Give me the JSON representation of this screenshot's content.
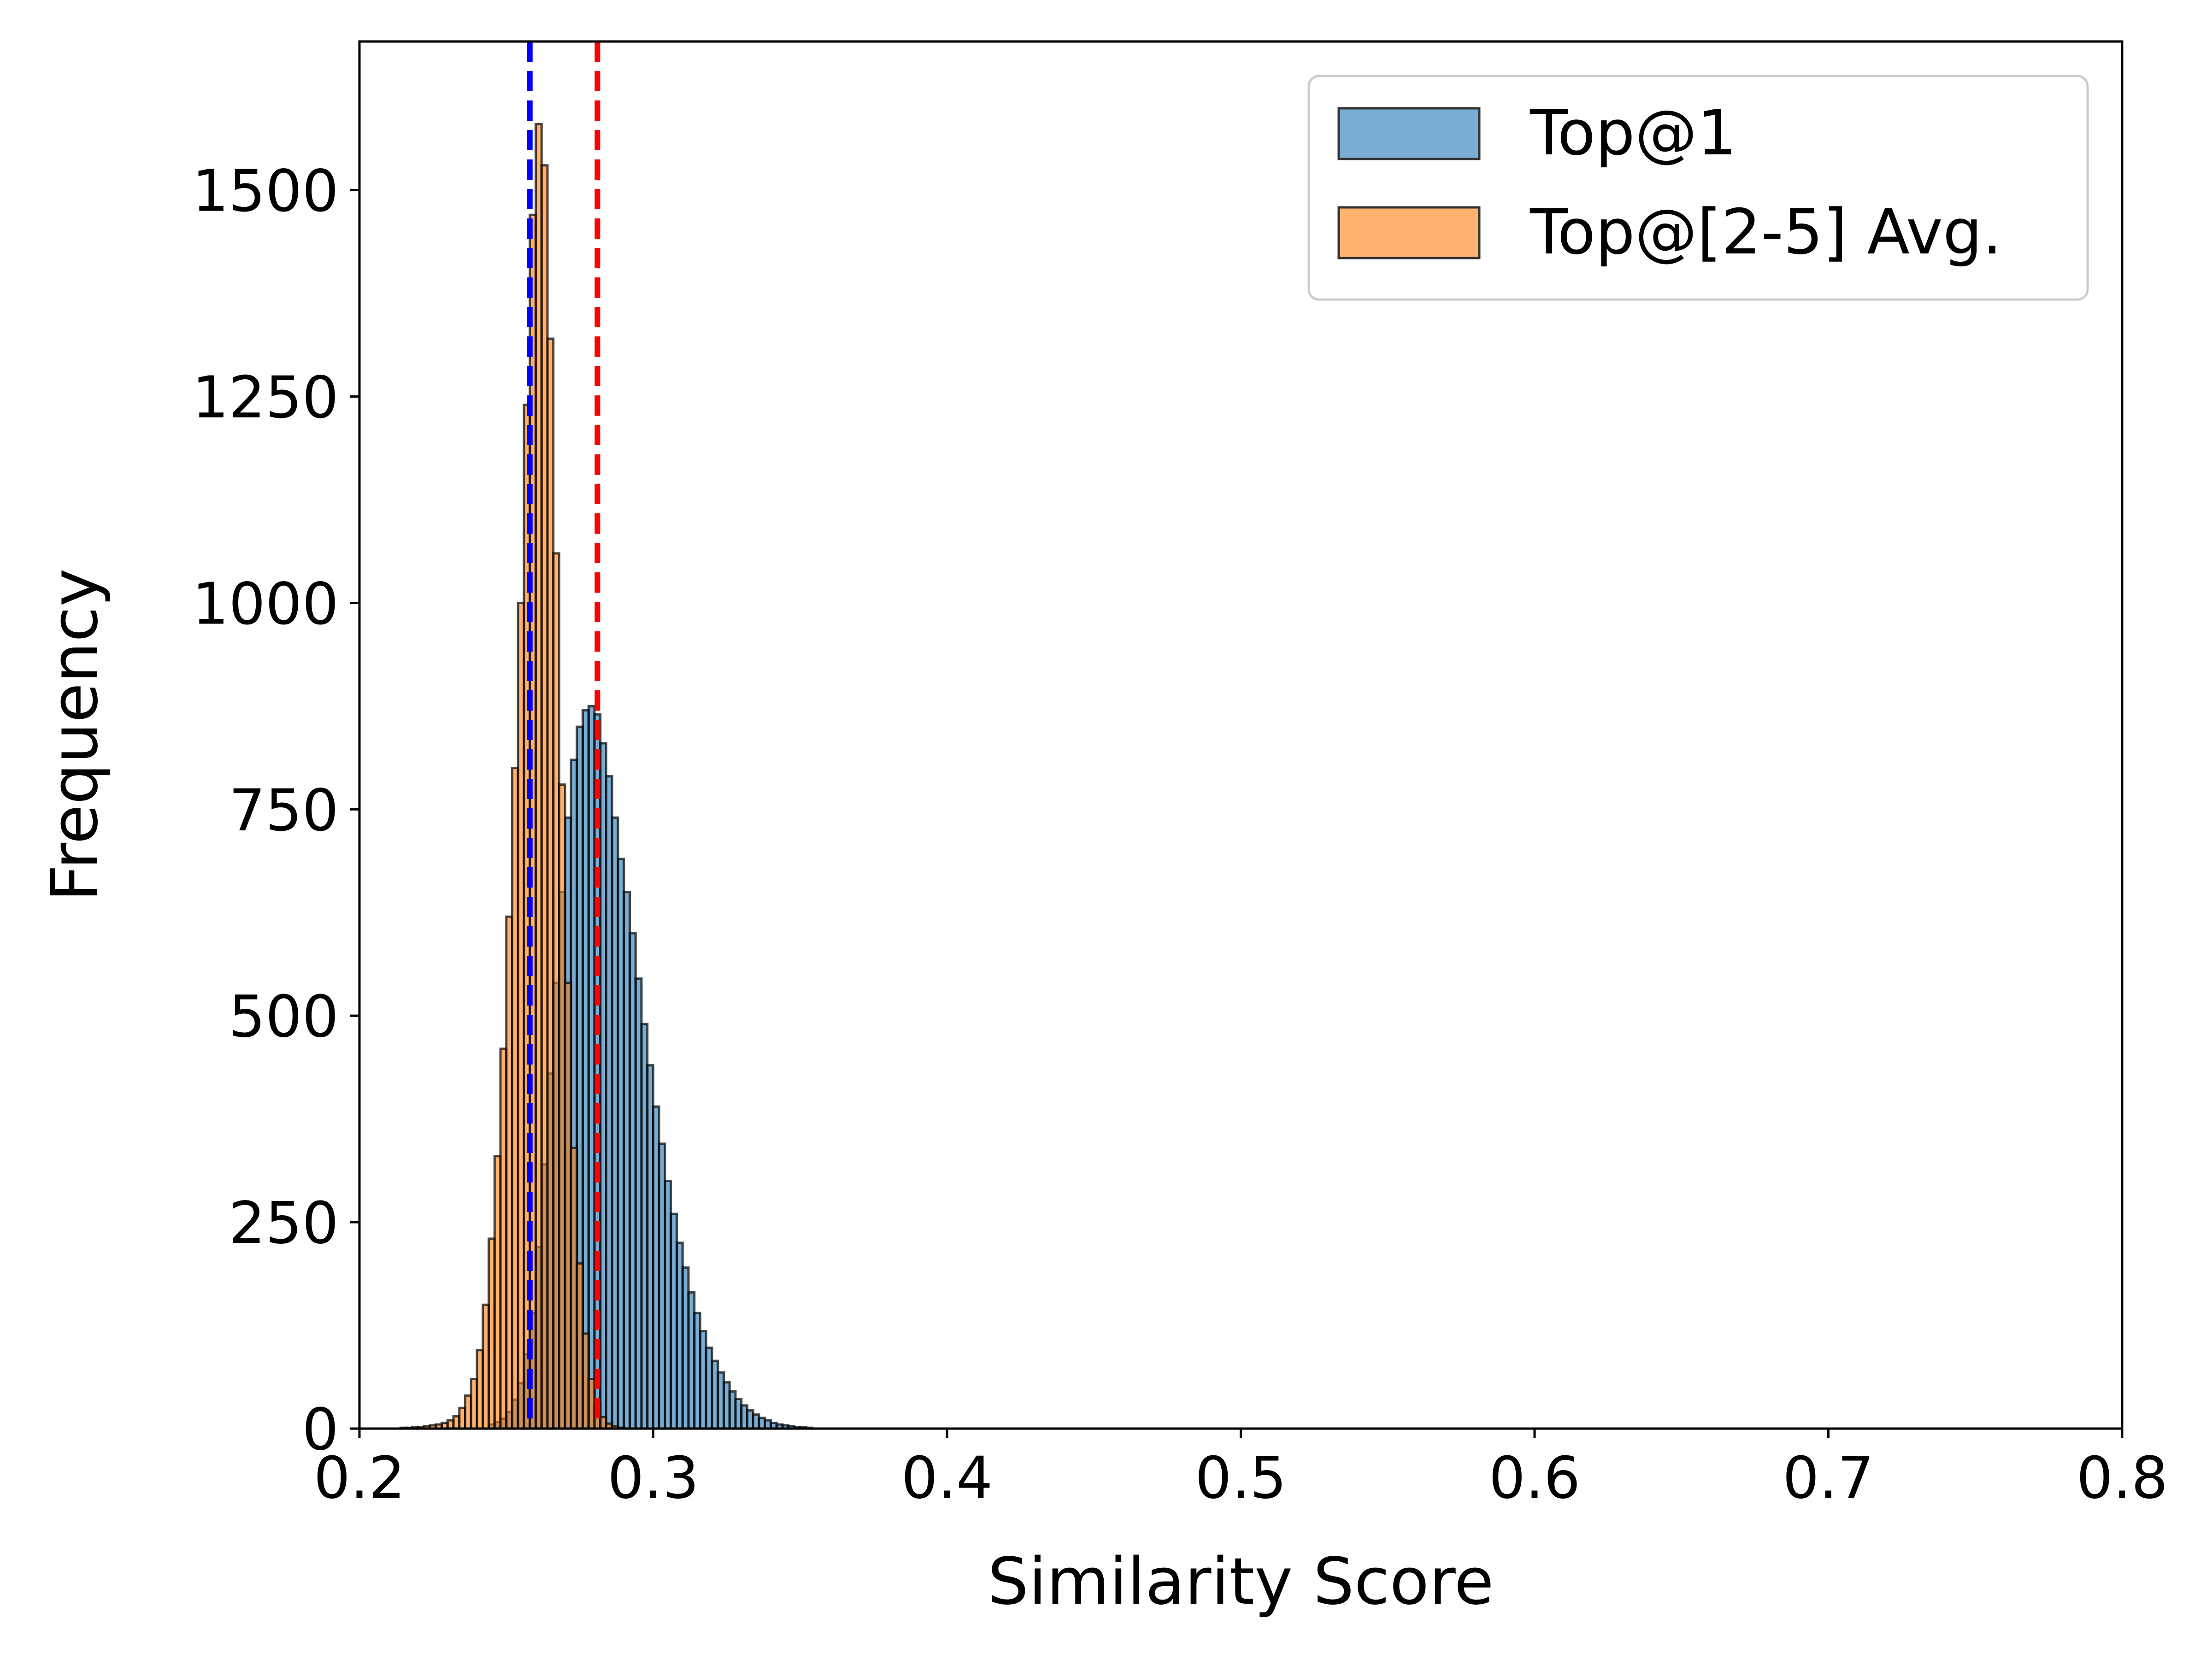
{
  "chart_data": {
    "type": "histogram",
    "xlabel": "Similarity Score",
    "ylabel": "Frequency",
    "xlim": [
      0.2,
      0.8
    ],
    "ylim": [
      0,
      1680
    ],
    "xticks": [
      0.2,
      0.3,
      0.4,
      0.5,
      0.6,
      0.7,
      0.8
    ],
    "xtick_labels": [
      "0.2",
      "0.3",
      "0.4",
      "0.5",
      "0.6",
      "0.7",
      "0.8"
    ],
    "yticks": [
      0,
      250,
      500,
      750,
      1000,
      1250,
      1500
    ],
    "ytick_labels": [
      "0",
      "250",
      "500",
      "750",
      "1000",
      "1250",
      "1500"
    ],
    "grid": false,
    "legend_position": "top-right",
    "bin_width": 0.002,
    "series": [
      {
        "name": "Top@1",
        "color": "#1f77b4",
        "opacity": 0.6,
        "x_start": 0.244,
        "values": [
          5,
          8,
          12,
          20,
          35,
          55,
          90,
          140,
          220,
          320,
          430,
          540,
          650,
          740,
          810,
          850,
          870,
          875,
          865,
          830,
          790,
          740,
          690,
          650,
          600,
          545,
          490,
          440,
          390,
          345,
          300,
          260,
          225,
          195,
          165,
          140,
          118,
          98,
          82,
          68,
          56,
          45,
          36,
          28,
          22,
          17,
          13,
          10,
          7,
          5,
          4,
          3,
          2,
          2,
          1
        ]
      },
      {
        "name": "Top@[2-5] Avg.",
        "color": "#ff7f0e",
        "opacity": 0.6,
        "x_start": 0.214,
        "values": [
          1,
          1,
          2,
          2,
          3,
          4,
          5,
          7,
          10,
          15,
          25,
          40,
          60,
          95,
          150,
          230,
          330,
          460,
          620,
          800,
          1000,
          1240,
          1470,
          1580,
          1530,
          1320,
          1060,
          780,
          540,
          340,
          200,
          115,
          60,
          30,
          14,
          6,
          3,
          1
        ]
      }
    ],
    "reference_lines": [
      {
        "x": 0.258,
        "color": "#0000ff",
        "style": "dashed"
      },
      {
        "x": 0.281,
        "color": "#ff0000",
        "style": "dashed"
      }
    ]
  }
}
